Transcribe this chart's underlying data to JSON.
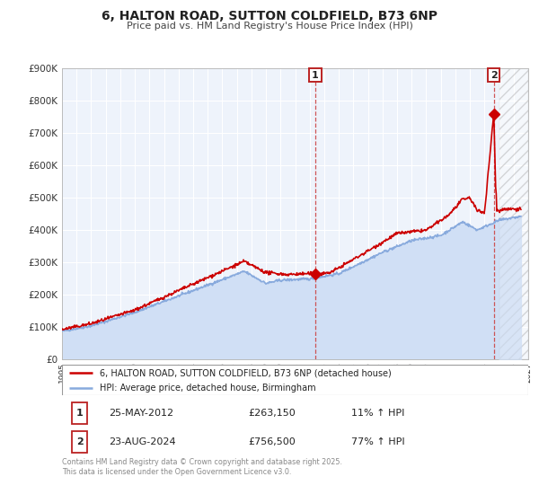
{
  "title": "6, HALTON ROAD, SUTTON COLDFIELD, B73 6NP",
  "subtitle": "Price paid vs. HM Land Registry's House Price Index (HPI)",
  "background_color": "#ffffff",
  "plot_background_color": "#eef3fb",
  "grid_color": "#ffffff",
  "red_line_color": "#cc0000",
  "blue_line_color": "#88aadd",
  "blue_fill_color": "#d0dff5",
  "dashed_line_color": "#cc4444",
  "legend_label_red": "6, HALTON ROAD, SUTTON COLDFIELD, B73 6NP (detached house)",
  "legend_label_blue": "HPI: Average price, detached house, Birmingham",
  "transaction1_date": "25-MAY-2012",
  "transaction1_price": "£263,150",
  "transaction1_hpi": "11% ↑ HPI",
  "transaction2_date": "23-AUG-2024",
  "transaction2_price": "£756,500",
  "transaction2_hpi": "77% ↑ HPI",
  "footnote": "Contains HM Land Registry data © Crown copyright and database right 2025.\nThis data is licensed under the Open Government Licence v3.0.",
  "xmin": 1995,
  "xmax": 2027,
  "ymin": 0,
  "ymax": 900000,
  "yticks": [
    0,
    100000,
    200000,
    300000,
    400000,
    500000,
    600000,
    700000,
    800000,
    900000
  ],
  "ytick_labels": [
    "£0",
    "£100K",
    "£200K",
    "£300K",
    "£400K",
    "£500K",
    "£600K",
    "£700K",
    "£800K",
    "£900K"
  ],
  "transaction1_x": 2012.38,
  "transaction1_y": 263150,
  "transaction2_x": 2024.64,
  "transaction2_y": 756500,
  "vline1_x": 2012.38,
  "vline2_x": 2024.64,
  "hatch_start": 2025.0
}
